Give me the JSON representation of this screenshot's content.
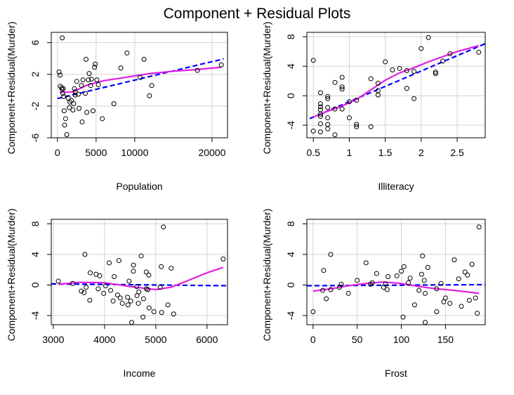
{
  "title": "Component + Residual Plots",
  "colors": {
    "fit_line": "#0000ff",
    "smooth_line": "#e020e0",
    "grid": "#d3d3d3",
    "points": "#000000"
  },
  "chart_data": [
    {
      "type": "scatter",
      "xlabel": "Population",
      "ylabel": "Component+Residual(Murder)",
      "xlim": [
        -800,
        22000
      ],
      "ylim": [
        -6,
        7.3
      ],
      "xticks": [
        0,
        5000,
        10000,
        20000
      ],
      "yticks": [
        -6,
        -2,
        2,
        6
      ],
      "grid": true,
      "points": [
        [
          620,
          6.6
        ],
        [
          212,
          2.3
        ],
        [
          345,
          1.9
        ],
        [
          365,
          0.5
        ],
        [
          559,
          0.3
        ],
        [
          590,
          0.1
        ],
        [
          700,
          -0.4
        ],
        [
          745,
          0.2
        ],
        [
          812,
          -0.8
        ],
        [
          868,
          -2.6
        ],
        [
          931,
          -4.4
        ],
        [
          1058,
          -3.6
        ],
        [
          1203,
          -5.6
        ],
        [
          1400,
          -1.0
        ],
        [
          1544,
          -2.2
        ],
        [
          1600,
          -1.5
        ],
        [
          1800,
          -1.3
        ],
        [
          2000,
          -2.5
        ],
        [
          2100,
          -1.7
        ],
        [
          2200,
          0.2
        ],
        [
          2280,
          -0.6
        ],
        [
          2300,
          -0.2
        ],
        [
          2500,
          1.1
        ],
        [
          2700,
          -0.5
        ],
        [
          2800,
          -2.3
        ],
        [
          3100,
          0.6
        ],
        [
          3200,
          -4.0
        ],
        [
          3300,
          1.3
        ],
        [
          3600,
          -0.4
        ],
        [
          3700,
          3.9
        ],
        [
          3800,
          -2.8
        ],
        [
          4000,
          1.3
        ],
        [
          4100,
          2.1
        ],
        [
          4300,
          0.6
        ],
        [
          4400,
          1.4
        ],
        [
          4600,
          -2.6
        ],
        [
          4800,
          2.9
        ],
        [
          4900,
          3.3
        ],
        [
          5100,
          1.3
        ],
        [
          5300,
          0.7
        ],
        [
          5800,
          -3.6
        ],
        [
          7300,
          -1.7
        ],
        [
          8200,
          2.8
        ],
        [
          9000,
          4.7
        ],
        [
          10700,
          1.6
        ],
        [
          11200,
          3.9
        ],
        [
          11900,
          -0.7
        ],
        [
          12200,
          0.6
        ],
        [
          18100,
          2.5
        ],
        [
          21200,
          3.2
        ]
      ],
      "fit": {
        "x": [
          0,
          21500
        ],
        "y": [
          -1.05,
          3.95
        ]
      },
      "smooth": {
        "x": [
          300,
          2000,
          4000,
          6000,
          8000,
          10000,
          12000,
          15000,
          18000,
          21200
        ],
        "y": [
          -0.3,
          -0.2,
          0.7,
          1.2,
          1.5,
          1.8,
          2.1,
          2.4,
          2.6,
          2.9
        ]
      }
    },
    {
      "type": "scatter",
      "xlabel": "Illiteracy",
      "ylabel": "Component+Residual(Murder)",
      "xlim": [
        0.41,
        2.89
      ],
      "ylim": [
        -5.7,
        8.6
      ],
      "xticks": [
        0.5,
        1.0,
        1.5,
        2.0,
        2.5
      ],
      "yticks": [
        -4,
        0,
        4,
        8
      ],
      "grid": true,
      "points": [
        [
          0.5,
          4.8
        ],
        [
          0.5,
          -4.8
        ],
        [
          0.6,
          -4.9
        ],
        [
          0.6,
          -3.8
        ],
        [
          0.6,
          -2.8
        ],
        [
          0.6,
          -2.5
        ],
        [
          0.6,
          -1.9
        ],
        [
          0.6,
          -1.5
        ],
        [
          0.6,
          -1.1
        ],
        [
          0.6,
          0.4
        ],
        [
          0.7,
          -4.5
        ],
        [
          0.7,
          -3.9
        ],
        [
          0.7,
          -3.0
        ],
        [
          0.7,
          -1.6
        ],
        [
          0.7,
          -0.4
        ],
        [
          0.7,
          -0.1
        ],
        [
          0.8,
          -5.3
        ],
        [
          0.8,
          -1.8
        ],
        [
          0.8,
          1.8
        ],
        [
          0.9,
          2.5
        ],
        [
          0.9,
          1.2
        ],
        [
          0.9,
          0.9
        ],
        [
          0.9,
          -1.8
        ],
        [
          1.0,
          -3.0
        ],
        [
          1.0,
          -0.8
        ],
        [
          1.1,
          -4.2
        ],
        [
          1.1,
          -3.9
        ],
        [
          1.1,
          -0.6
        ],
        [
          1.3,
          2.3
        ],
        [
          1.3,
          -4.2
        ],
        [
          1.4,
          1.7
        ],
        [
          1.4,
          0.7
        ],
        [
          1.4,
          0.1
        ],
        [
          1.5,
          4.6
        ],
        [
          1.6,
          3.5
        ],
        [
          1.7,
          3.7
        ],
        [
          1.8,
          3.4
        ],
        [
          1.8,
          1.0
        ],
        [
          1.9,
          -0.4
        ],
        [
          1.9,
          3.3
        ],
        [
          2.0,
          6.4
        ],
        [
          2.1,
          7.9
        ],
        [
          2.2,
          3.0
        ],
        [
          2.2,
          3.2
        ],
        [
          2.3,
          4.7
        ],
        [
          2.4,
          5.7
        ],
        [
          2.8,
          5.9
        ]
      ],
      "fit": {
        "x": [
          0.45,
          2.9
        ],
        "y": [
          -3.1,
          7.1
        ]
      },
      "smooth": {
        "x": [
          0.5,
          0.7,
          0.9,
          1.1,
          1.3,
          1.5,
          1.7,
          1.9,
          2.1,
          2.3,
          2.5,
          2.8
        ],
        "y": [
          -2.9,
          -2.1,
          -1.4,
          -0.5,
          0.8,
          2.1,
          3.1,
          3.8,
          4.6,
          5.3,
          6.0,
          6.8
        ]
      }
    },
    {
      "type": "scatter",
      "xlabel": "Income",
      "ylabel": "Component+Residual(Murder)",
      "xlim": [
        2960,
        6400
      ],
      "ylim": [
        -5.2,
        8.6
      ],
      "xticks": [
        3000,
        4000,
        5000,
        6000
      ],
      "yticks": [
        -4,
        0,
        4,
        8
      ],
      "grid": true,
      "points": [
        [
          3098,
          0.5
        ],
        [
          3378,
          0.2
        ],
        [
          3545,
          -0.8
        ],
        [
          3601,
          -1.0
        ],
        [
          3617,
          4.0
        ],
        [
          3640,
          -0.3
        ],
        [
          3712,
          -2.0
        ],
        [
          3720,
          1.6
        ],
        [
          3834,
          1.4
        ],
        [
          3875,
          -0.5
        ],
        [
          3907,
          1.2
        ],
        [
          3983,
          -1.1
        ],
        [
          4022,
          -0.1
        ],
        [
          4091,
          2.9
        ],
        [
          4119,
          -0.7
        ],
        [
          4167,
          -2.1
        ],
        [
          4188,
          1.1
        ],
        [
          4254,
          -1.3
        ],
        [
          4281,
          3.2
        ],
        [
          4307,
          -1.7
        ],
        [
          4347,
          -2.4
        ],
        [
          4449,
          -1.6
        ],
        [
          4458,
          -2.6
        ],
        [
          4478,
          0.5
        ],
        [
          4512,
          -2.1
        ],
        [
          4530,
          -4.9
        ],
        [
          4563,
          1.8
        ],
        [
          4564,
          2.6
        ],
        [
          4628,
          -0.2
        ],
        [
          4633,
          -1.4
        ],
        [
          4660,
          -2.4
        ],
        [
          4669,
          -0.9
        ],
        [
          4716,
          3.8
        ],
        [
          4751,
          -4.2
        ],
        [
          4761,
          -1.8
        ],
        [
          4815,
          1.7
        ],
        [
          4817,
          -0.5
        ],
        [
          4845,
          -0.6
        ],
        [
          4864,
          1.3
        ],
        [
          4870,
          -3.0
        ],
        [
          4963,
          -3.5
        ],
        [
          5087,
          -0.3
        ],
        [
          5107,
          2.4
        ],
        [
          5114,
          -3.6
        ],
        [
          5149,
          7.6
        ],
        [
          5237,
          -2.6
        ],
        [
          5299,
          2.2
        ],
        [
          5348,
          -3.8
        ],
        [
          6315,
          3.4
        ]
      ],
      "fit": {
        "x": [
          2960,
          6400
        ],
        "y": [
          0.15,
          -0.1
        ]
      },
      "smooth": {
        "x": [
          3100,
          3500,
          4000,
          4500,
          5000,
          5300,
          5600,
          6000,
          6315
        ],
        "y": [
          0.1,
          0.35,
          0.3,
          -0.2,
          -0.6,
          -0.3,
          0.5,
          1.6,
          2.3
        ]
      }
    },
    {
      "type": "scatter",
      "xlabel": "Frost",
      "ylabel": "Component+Residual(Murder)",
      "xlim": [
        -7,
        195
      ],
      "ylim": [
        -5.2,
        8.6
      ],
      "xticks": [
        0,
        50,
        100,
        150
      ],
      "yticks": [
        -4,
        0,
        4,
        8
      ],
      "grid": true,
      "points": [
        [
          0,
          -3.5
        ],
        [
          11,
          -0.7
        ],
        [
          12,
          1.9
        ],
        [
          15,
          -1.8
        ],
        [
          20,
          -0.6
        ],
        [
          20,
          4.0
        ],
        [
          30,
          -0.3
        ],
        [
          32,
          0.1
        ],
        [
          40,
          -1.1
        ],
        [
          50,
          0.6
        ],
        [
          60,
          2.9
        ],
        [
          65,
          0.1
        ],
        [
          67,
          0.3
        ],
        [
          72,
          1.5
        ],
        [
          80,
          -0.3
        ],
        [
          82,
          0.1
        ],
        [
          84,
          -0.6
        ],
        [
          85,
          1.1
        ],
        [
          95,
          1.2
        ],
        [
          100,
          1.8
        ],
        [
          102,
          -4.2
        ],
        [
          103,
          2.4
        ],
        [
          108,
          0.3
        ],
        [
          110,
          0.9
        ],
        [
          115,
          -2.6
        ],
        [
          120,
          -0.7
        ],
        [
          123,
          1.4
        ],
        [
          124,
          3.8
        ],
        [
          126,
          0.6
        ],
        [
          127,
          -4.9
        ],
        [
          127,
          -1.1
        ],
        [
          130,
          2.3
        ],
        [
          140,
          -0.5
        ],
        [
          140,
          -3.5
        ],
        [
          145,
          0.2
        ],
        [
          148,
          -2.2
        ],
        [
          150,
          -1.7
        ],
        [
          155,
          -2.4
        ],
        [
          160,
          3.3
        ],
        [
          165,
          0.8
        ],
        [
          168,
          -2.8
        ],
        [
          172,
          1.7
        ],
        [
          175,
          1.3
        ],
        [
          177,
          -2.0
        ],
        [
          180,
          2.7
        ],
        [
          184,
          -1.7
        ],
        [
          186,
          -3.7
        ],
        [
          188,
          7.6
        ]
      ],
      "fit": {
        "x": [
          -7,
          195
        ],
        "y": [
          -0.1,
          0.05
        ]
      },
      "smooth": {
        "x": [
          0,
          20,
          40,
          60,
          80,
          100,
          120,
          140,
          160,
          188
        ],
        "y": [
          -0.8,
          -0.5,
          -0.1,
          0.2,
          0.4,
          0.2,
          -0.2,
          -0.5,
          -0.7,
          -1.1
        ]
      }
    }
  ]
}
